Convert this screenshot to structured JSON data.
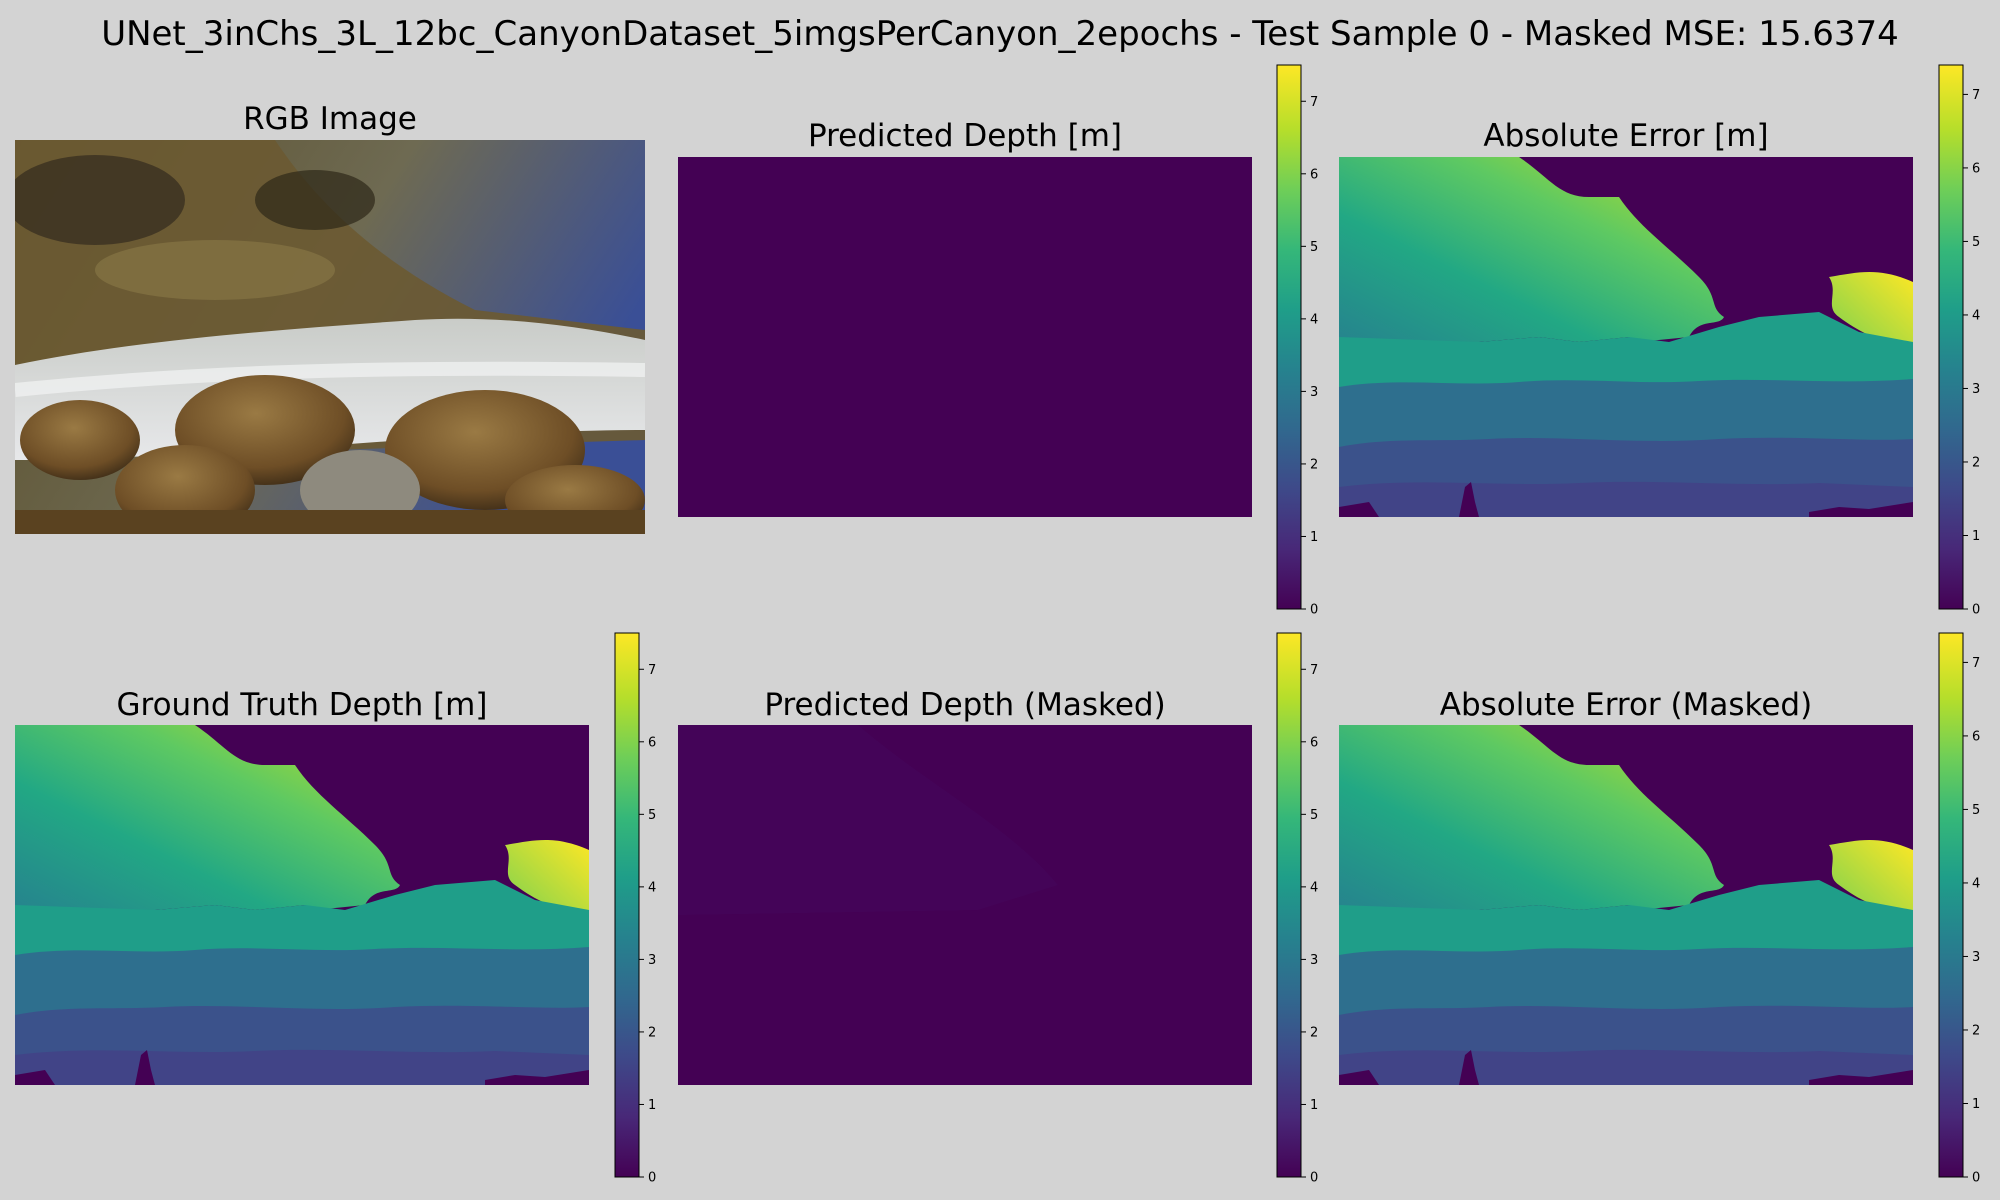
{
  "figure": {
    "suptitle": "UNet_3inChs_3L_12bc_CanyonDataset_5imgsPerCanyon_2epochs - Test Sample 0 - Masked MSE: 15.6374"
  },
  "panels": [
    {
      "title": "RGB Image"
    },
    {
      "title": "Predicted Depth [m]"
    },
    {
      "title": "Absolute Error [m]"
    },
    {
      "title": "Ground Truth Depth [m]"
    },
    {
      "title": "Predicted Depth (Masked)"
    },
    {
      "title": "Absolute Error (Masked)"
    }
  ],
  "colors": {
    "background": "#d3d3d3",
    "viridis": [
      "#440154",
      "#482878",
      "#3e4989",
      "#31688e",
      "#26828e",
      "#1f9e89",
      "#35b779",
      "#6ece58",
      "#b5de2b",
      "#fde725"
    ]
  },
  "chart_data": [
    {
      "type": "heatmap",
      "title": "Predicted Depth [m]",
      "colormap": "viridis",
      "colorbar": {
        "vmin": 0,
        "vmax": 7.5,
        "ticks": [
          "0",
          "1",
          "2",
          "3",
          "4",
          "5",
          "6",
          "7"
        ]
      },
      "values_description": "uniform ~0"
    },
    {
      "type": "heatmap",
      "title": "Absolute Error [m]",
      "colormap": "viridis",
      "colorbar": {
        "vmin": 0,
        "vmax": 7.4,
        "ticks": [
          "0",
          "1",
          "2",
          "3",
          "4",
          "5",
          "6",
          "7"
        ]
      }
    },
    {
      "type": "heatmap",
      "title": "Ground Truth Depth [m]",
      "colormap": "viridis",
      "colorbar": {
        "vmin": 0,
        "vmax": 7.5,
        "ticks": [
          "0",
          "1",
          "2",
          "3",
          "4",
          "5",
          "6",
          "7"
        ]
      }
    },
    {
      "type": "heatmap",
      "title": "Predicted Depth (Masked)",
      "colormap": "viridis",
      "colorbar": {
        "vmin": 0,
        "vmax": 7.5,
        "ticks": [
          "0",
          "1",
          "2",
          "3",
          "4",
          "5",
          "6",
          "7"
        ]
      }
    },
    {
      "type": "heatmap",
      "title": "Absolute Error (Masked)",
      "colormap": "viridis",
      "colorbar": {
        "vmin": 0,
        "vmax": 7.4,
        "ticks": [
          "0",
          "1",
          "2",
          "3",
          "4",
          "5",
          "6",
          "7"
        ]
      }
    }
  ]
}
